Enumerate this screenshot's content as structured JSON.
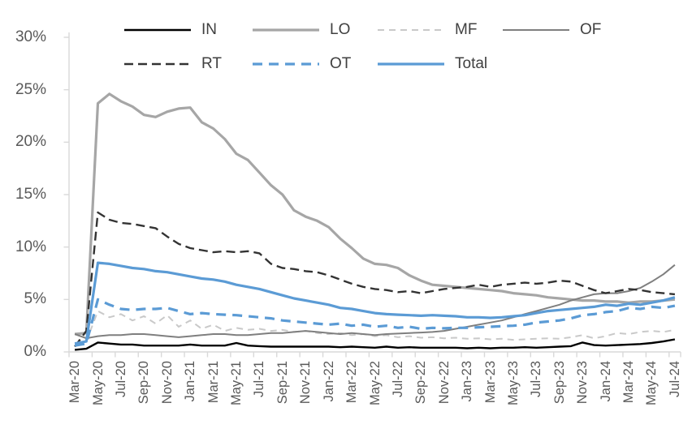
{
  "chart_data": {
    "type": "line",
    "title": "",
    "ylabel": "",
    "xlabel": "",
    "ylim": [
      0,
      30
    ],
    "grid": false,
    "legend_position": "top",
    "axis_color": "#d9d9d9",
    "tick_label_color": "#595959",
    "legend_text_color": "#404040",
    "y_tick_labels": [
      "0%",
      "5%",
      "10%",
      "15%",
      "20%",
      "25%",
      "30%"
    ],
    "x_tick_labels": [
      "Mar-20",
      "May-20",
      "Jul-20",
      "Sep-20",
      "Nov-20",
      "Jan-21",
      "Mar-21",
      "May-21",
      "Jul-21",
      "Sep-21",
      "Nov-21",
      "Jan-22",
      "Mar-22",
      "May-22",
      "Jul-22",
      "Sep-22",
      "Nov-22",
      "Jan-23",
      "Mar-23",
      "May-23",
      "Jul-23",
      "Sep-23",
      "Nov-23",
      "Jan-24",
      "Mar-24",
      "May-24",
      "Jul-24"
    ],
    "series": [
      {
        "name": "IN",
        "color": "#000000",
        "style": "solid",
        "width": 2.4,
        "values": [
          0.2,
          0.3,
          0.9,
          0.8,
          0.7,
          0.7,
          0.6,
          0.6,
          0.6,
          0.6,
          0.7,
          0.6,
          0.6,
          0.6,
          0.85,
          0.6,
          0.55,
          0.5,
          0.5,
          0.5,
          0.5,
          0.5,
          0.5,
          0.45,
          0.5,
          0.45,
          0.4,
          0.5,
          0.4,
          0.45,
          0.4,
          0.4,
          0.4,
          0.4,
          0.35,
          0.4,
          0.35,
          0.4,
          0.4,
          0.45,
          0.4,
          0.45,
          0.5,
          0.55,
          0.9,
          0.65,
          0.6,
          0.65,
          0.7,
          0.75,
          0.85,
          1.0,
          1.2
        ]
      },
      {
        "name": "LO",
        "color": "#a6a6a6",
        "style": "solid",
        "width": 3.2,
        "values": [
          1.7,
          1.8,
          23.7,
          24.6,
          23.9,
          23.4,
          22.6,
          22.4,
          22.9,
          23.2,
          23.3,
          21.9,
          21.3,
          20.3,
          18.9,
          18.3,
          17.1,
          15.9,
          15.0,
          13.5,
          12.9,
          12.5,
          11.9,
          10.8,
          9.9,
          8.9,
          8.4,
          8.3,
          8.0,
          7.3,
          6.8,
          6.4,
          6.3,
          6.2,
          6.1,
          6.0,
          5.9,
          5.8,
          5.6,
          5.5,
          5.4,
          5.2,
          5.1,
          5.0,
          4.9,
          4.9,
          4.8,
          4.8,
          4.7,
          4.8,
          4.8,
          4.9,
          5.0
        ]
      },
      {
        "name": "MF",
        "color": "#c9c9c9",
        "style": "dashed",
        "width": 2.0,
        "values": [
          0.6,
          1.0,
          3.9,
          3.3,
          3.6,
          3.0,
          3.4,
          2.7,
          3.5,
          2.4,
          3.0,
          2.2,
          2.6,
          2.0,
          2.3,
          2.1,
          2.2,
          2.0,
          2.1,
          1.9,
          2.0,
          1.8,
          1.7,
          1.8,
          1.6,
          1.7,
          1.5,
          1.6,
          1.4,
          1.5,
          1.35,
          1.4,
          1.3,
          1.35,
          1.25,
          1.3,
          1.2,
          1.25,
          1.15,
          1.2,
          1.25,
          1.3,
          1.25,
          1.4,
          1.6,
          1.3,
          1.5,
          1.8,
          1.7,
          1.9,
          2.0,
          1.9,
          2.1
        ]
      },
      {
        "name": "OF",
        "color": "#7f7f7f",
        "style": "solid",
        "width": 2.0,
        "values": [
          1.7,
          1.3,
          1.5,
          1.6,
          1.6,
          1.7,
          1.7,
          1.6,
          1.5,
          1.4,
          1.5,
          1.6,
          1.7,
          1.7,
          1.6,
          1.6,
          1.7,
          1.8,
          1.8,
          1.9,
          2.0,
          1.9,
          1.8,
          1.7,
          1.8,
          1.7,
          1.6,
          1.7,
          1.75,
          1.8,
          1.85,
          1.9,
          2.0,
          2.2,
          2.4,
          2.6,
          2.8,
          3.0,
          3.3,
          3.6,
          3.9,
          4.2,
          4.5,
          4.9,
          5.2,
          5.5,
          5.6,
          5.6,
          5.8,
          6.1,
          6.7,
          7.4,
          8.3
        ]
      },
      {
        "name": "RT",
        "color": "#333333",
        "style": "dashed",
        "width": 2.4,
        "values": [
          0.5,
          2.0,
          13.3,
          12.6,
          12.3,
          12.2,
          12.0,
          11.8,
          11.0,
          10.3,
          9.9,
          9.7,
          9.5,
          9.6,
          9.5,
          9.6,
          9.4,
          8.4,
          8.0,
          7.9,
          7.7,
          7.6,
          7.3,
          6.9,
          6.5,
          6.2,
          6.0,
          5.9,
          5.7,
          5.8,
          5.6,
          5.8,
          6.0,
          6.1,
          6.2,
          6.4,
          6.2,
          6.4,
          6.5,
          6.6,
          6.5,
          6.6,
          6.8,
          6.7,
          6.3,
          5.9,
          5.6,
          5.8,
          6.0,
          5.9,
          5.7,
          5.6,
          5.5
        ]
      },
      {
        "name": "OT",
        "color": "#5b9bd5",
        "style": "dashed",
        "width": 3.2,
        "values": [
          0.6,
          0.8,
          5.0,
          4.5,
          4.1,
          4.0,
          4.1,
          4.1,
          4.2,
          3.9,
          3.6,
          3.7,
          3.6,
          3.55,
          3.5,
          3.4,
          3.3,
          3.2,
          3.0,
          2.9,
          2.8,
          2.7,
          2.6,
          2.7,
          2.5,
          2.6,
          2.4,
          2.5,
          2.3,
          2.4,
          2.2,
          2.3,
          2.25,
          2.3,
          2.3,
          2.35,
          2.4,
          2.45,
          2.5,
          2.6,
          2.8,
          2.9,
          3.0,
          3.2,
          3.5,
          3.6,
          3.8,
          3.9,
          4.2,
          4.1,
          4.3,
          4.2,
          4.4
        ]
      },
      {
        "name": "Total",
        "color": "#5b9bd5",
        "style": "solid",
        "width": 3.2,
        "values": [
          0.8,
          1.0,
          8.5,
          8.4,
          8.2,
          8.0,
          7.9,
          7.7,
          7.6,
          7.4,
          7.2,
          7.0,
          6.9,
          6.7,
          6.4,
          6.2,
          6.0,
          5.7,
          5.4,
          5.1,
          4.9,
          4.7,
          4.5,
          4.2,
          4.1,
          3.9,
          3.7,
          3.6,
          3.55,
          3.5,
          3.45,
          3.5,
          3.45,
          3.4,
          3.3,
          3.3,
          3.25,
          3.3,
          3.4,
          3.5,
          3.7,
          3.9,
          4.0,
          4.1,
          4.2,
          4.3,
          4.5,
          4.4,
          4.6,
          4.5,
          4.7,
          4.9,
          5.2
        ]
      }
    ],
    "draw_order": [
      "LO",
      "MF",
      "OF",
      "RT",
      "IN",
      "OT",
      "Total"
    ],
    "legend_rows": [
      [
        "IN",
        "LO",
        "MF",
        "OF"
      ],
      [
        "RT",
        "OT",
        "Total"
      ]
    ]
  }
}
